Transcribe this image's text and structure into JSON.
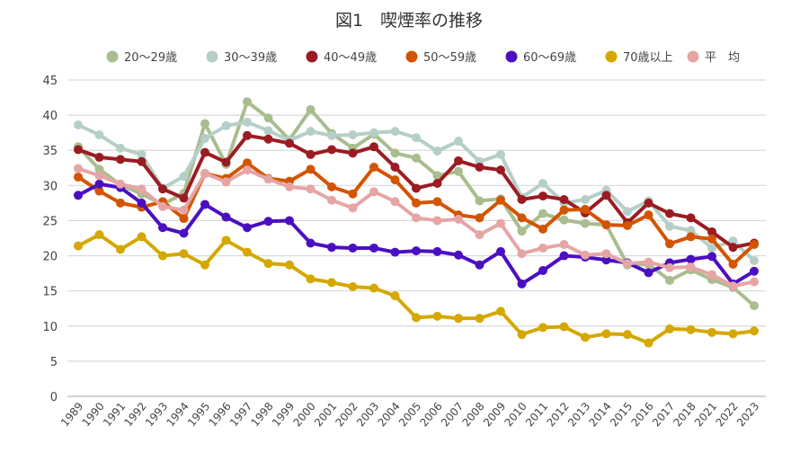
{
  "chart_data": {
    "type": "line",
    "title": "図1　喫煙率の推移",
    "xlabel": "",
    "ylabel": "",
    "ylim": [
      0,
      45
    ],
    "yticks": [
      0,
      5,
      10,
      15,
      20,
      25,
      30,
      35,
      40,
      45
    ],
    "grid": true,
    "legend_position": "top",
    "categories": [
      "1989",
      "1990",
      "1991",
      "1992",
      "1993",
      "1994",
      "1995",
      "1996",
      "1997",
      "1998",
      "1999",
      "2000",
      "2001",
      "2002",
      "2003",
      "2004",
      "2005",
      "2006",
      "2007",
      "2008",
      "2009",
      "2010",
      "2011",
      "2012",
      "2013",
      "2014",
      "2015",
      "2016",
      "2017",
      "2018",
      "2021",
      "2022",
      "2023"
    ],
    "series": [
      {
        "name": "20～29歳",
        "color": "#a9bd8f",
        "values": [
          35.5,
          32.3,
          30.1,
          28.8,
          27.3,
          28.9,
          38.8,
          33.0,
          41.9,
          39.6,
          36.5,
          40.8,
          37.4,
          35.3,
          37.3,
          34.6,
          33.9,
          31.4,
          32.0,
          27.8,
          28.1,
          23.5,
          26.0,
          25.1,
          24.6,
          24.4,
          18.7,
          18.8,
          16.5,
          18.0,
          16.6,
          15.5,
          12.9
        ]
      },
      {
        "name": "30～39歳",
        "color": "#b5cfc8",
        "values": [
          38.6,
          37.2,
          35.3,
          34.4,
          29.6,
          31.3,
          36.7,
          38.5,
          39.0,
          37.8,
          36.4,
          37.7,
          37.1,
          37.2,
          37.5,
          37.7,
          36.8,
          34.9,
          36.3,
          33.4,
          34.4,
          28.3,
          30.3,
          27.5,
          28.0,
          29.3,
          26.3,
          27.8,
          24.2,
          23.6,
          21.1,
          22.1,
          19.3
        ]
      },
      {
        "name": "40～49歳",
        "color": "#9a1c22",
        "values": [
          35.1,
          34.0,
          33.7,
          33.4,
          29.5,
          28.2,
          34.7,
          33.3,
          37.1,
          36.6,
          36.0,
          34.4,
          35.1,
          34.6,
          35.5,
          32.6,
          29.6,
          30.3,
          33.5,
          32.6,
          32.2,
          28.0,
          28.5,
          28.0,
          26.1,
          28.6,
          24.7,
          27.5,
          26.0,
          25.4,
          23.4,
          21.2,
          21.8
        ]
      },
      {
        "name": "50～59歳",
        "color": "#d35400",
        "values": [
          31.2,
          29.2,
          27.5,
          26.9,
          27.7,
          25.3,
          31.7,
          31.0,
          33.2,
          31.0,
          30.6,
          32.3,
          29.8,
          28.8,
          32.6,
          30.8,
          27.5,
          27.7,
          25.8,
          25.4,
          27.9,
          25.4,
          23.8,
          26.5,
          26.6,
          24.4,
          24.3,
          25.8,
          21.7,
          22.7,
          22.4,
          18.8,
          21.6
        ]
      },
      {
        "name": "60～69歳",
        "color": "#4b0fc2",
        "values": [
          28.6,
          30.2,
          29.7,
          27.5,
          24.0,
          23.2,
          27.3,
          25.5,
          24.0,
          24.9,
          25.0,
          21.8,
          21.2,
          21.1,
          21.1,
          20.5,
          20.7,
          20.6,
          20.1,
          18.7,
          20.6,
          16.0,
          17.9,
          20.0,
          19.8,
          19.4,
          19.0,
          17.6,
          19.0,
          19.5,
          19.9,
          16.0,
          17.8
        ]
      },
      {
        "name": "70歳以上",
        "color": "#d4a800",
        "values": [
          21.4,
          23.0,
          20.9,
          22.7,
          20.0,
          20.3,
          18.7,
          22.2,
          20.5,
          18.9,
          18.7,
          16.7,
          16.2,
          15.6,
          15.4,
          14.3,
          11.2,
          11.4,
          11.1,
          11.1,
          12.1,
          8.8,
          9.8,
          9.9,
          8.4,
          8.9,
          8.8,
          7.6,
          9.6,
          9.5,
          9.1,
          8.9,
          9.3
        ]
      },
      {
        "name": "平　均",
        "color": "#e6a5a5",
        "values": [
          32.4,
          31.4,
          30.2,
          29.5,
          27.0,
          26.5,
          31.7,
          30.5,
          32.2,
          30.9,
          29.8,
          29.5,
          27.9,
          26.8,
          29.1,
          27.7,
          25.4,
          25.0,
          25.2,
          23.0,
          24.6,
          20.3,
          21.1,
          21.6,
          20.1,
          20.3,
          18.9,
          19.1,
          18.3,
          18.4,
          17.3,
          15.7,
          16.3
        ]
      }
    ]
  }
}
